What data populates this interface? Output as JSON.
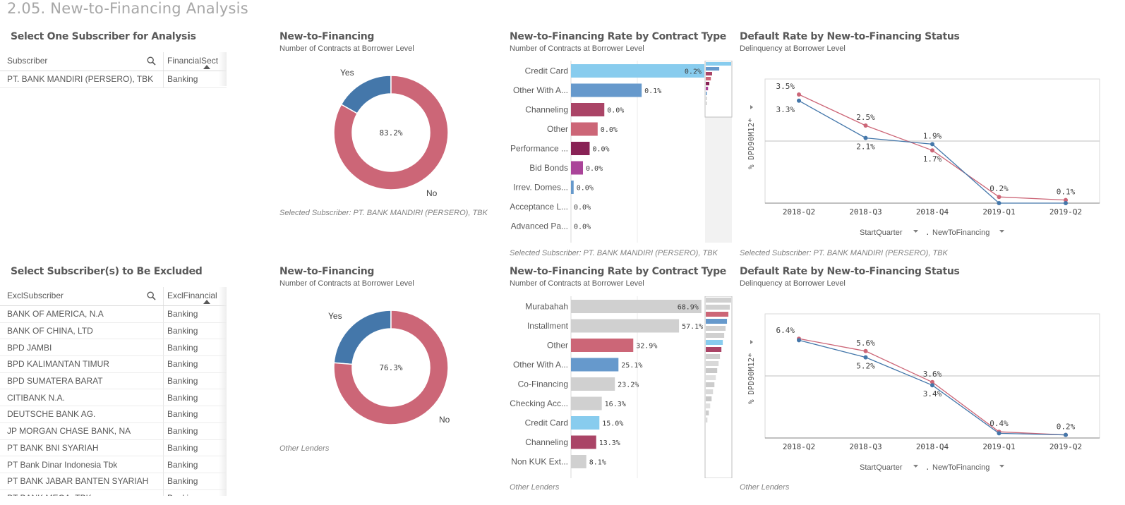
{
  "sheet": {
    "title": "2.05. New-to-Financing Analysis"
  },
  "panel_selector": {
    "title": "Select One Subscriber for Analysis",
    "col1": "Subscriber",
    "col2": "FinancialSect",
    "rows": [
      {
        "name": "PT. BANK MANDIRI (PERSERO), TBK",
        "sector": "Banking"
      }
    ]
  },
  "panel_exclude": {
    "title": "Select Subscriber(s) to Be Excluded",
    "col1": "ExclSubscriber",
    "col2": "ExclFinancial",
    "rows": [
      {
        "name": "BANK OF AMERICA, N.A",
        "sector": "Banking"
      },
      {
        "name": "BANK OF CHINA, LTD",
        "sector": "Banking"
      },
      {
        "name": "BPD JAMBI",
        "sector": "Banking"
      },
      {
        "name": "BPD KALIMANTAN TIMUR",
        "sector": "Banking"
      },
      {
        "name": "BPD SUMATERA BARAT",
        "sector": "Banking"
      },
      {
        "name": "CITIBANK N.A.",
        "sector": "Banking"
      },
      {
        "name": "DEUTSCHE BANK AG.",
        "sector": "Banking"
      },
      {
        "name": "JP MORGAN CHASE BANK, NA",
        "sector": "Banking"
      },
      {
        "name": "PT BANK BNI SYARIAH",
        "sector": "Banking"
      },
      {
        "name": "PT Bank Dinar Indonesia Tbk",
        "sector": "Banking"
      },
      {
        "name": "PT BANK JABAR BANTEN SYARIAH",
        "sector": "Banking"
      },
      {
        "name": "PT BANK MEGA, TBK",
        "sector": "Banking"
      }
    ]
  },
  "colors": {
    "yes": "#4477aa",
    "no": "#cc6677",
    "grey": "#d0d0d0",
    "light_blue": "#88ccee",
    "mid_blue": "#6699cc",
    "dark_rose": "#aa4466",
    "rose": "#cc6677",
    "plum": "#882255",
    "magenta": "#aa4499"
  },
  "chart_data": [
    {
      "type": "pie",
      "title": "New-to-Financing",
      "subtitle": "Number of Contracts at Borrower Level",
      "labels": [
        "Yes",
        "No"
      ],
      "values": [
        16.8,
        83.2
      ],
      "center_label": "83.2%",
      "footnote": "Selected Subscriber: PT. BANK MANDIRI (PERSERO), TBK"
    },
    {
      "type": "bar",
      "orientation": "horizontal",
      "title": "New-to-Financing Rate by Contract Type",
      "subtitle": "Number of Contracts at Borrower Level",
      "categories": [
        "Credit Card",
        "Other With A...",
        "Channeling",
        "Other",
        "Performance ...",
        "Bid Bonds",
        "Irrev. Domes...",
        "Acceptance L...",
        "Advanced Pa..."
      ],
      "values": [
        0.2,
        0.1,
        0.0,
        0.0,
        0.0,
        0.0,
        0.0,
        0.0,
        0.0
      ],
      "value_labels": [
        "0.2%",
        "0.1%",
        "0.0%",
        "0.0%",
        "0.0%",
        "0.0%",
        "0.0%",
        "0.0%",
        "0.0%"
      ],
      "bar_lengths": [
        1.0,
        0.53,
        0.25,
        0.2,
        0.14,
        0.09,
        0.02,
        0,
        0
      ],
      "bar_colors": [
        "#88ccee",
        "#6699cc",
        "#aa4466",
        "#cc6677",
        "#882255",
        "#aa4499",
        "#6699cc",
        "#cccccc",
        "#cccccc"
      ],
      "footnote": "Selected Subscriber: PT. BANK MANDIRI (PERSERO), TBK"
    },
    {
      "type": "line",
      "title": "Default Rate by New-to-Financing Status",
      "subtitle": "Delinquency at Borrower Level",
      "ylabel": "% DPD90M12*",
      "x": [
        "2018-Q2",
        "2018-Q3",
        "2018-Q4",
        "2019-Q1",
        "2019-Q2"
      ],
      "ylim": [
        0,
        4
      ],
      "series": [
        {
          "key": "no",
          "color": "#cc6677",
          "values": [
            3.5,
            2.5,
            1.7,
            0.2,
            0.1
          ],
          "labels": [
            "3.5%",
            "2.5%",
            "1.7%",
            "0.2%",
            "0.1%"
          ]
        },
        {
          "key": "yes",
          "color": "#4477aa",
          "values": [
            3.3,
            2.1,
            1.9,
            0.0,
            0.0
          ],
          "labels": [
            "3.3%",
            "2.1%",
            "1.9%",
            "",
            ""
          ]
        }
      ],
      "dimension_labels": [
        "StartQuarter",
        "NewToFinancing"
      ],
      "footnote": "Selected Subscriber: PT. BANK MANDIRI (PERSERO), TBK"
    },
    {
      "type": "pie",
      "title": "New-to-Financing",
      "subtitle": "Number of Contracts at Borrower Level",
      "labels": [
        "Yes",
        "No"
      ],
      "values": [
        23.7,
        76.3
      ],
      "center_label": "76.3%",
      "footnote": "Other Lenders"
    },
    {
      "type": "bar",
      "orientation": "horizontal",
      "title": "New-to-Financing Rate by Contract Type",
      "subtitle": "Number of Contracts at Borrower Level",
      "categories": [
        "Murabahah",
        "Installment",
        "Other",
        "Other With A...",
        "Co-Financing",
        "Checking Acc...",
        "Credit Card",
        "Channeling",
        "Non KUK Ext..."
      ],
      "values": [
        68.9,
        57.1,
        32.9,
        25.1,
        23.2,
        16.3,
        15.0,
        13.3,
        8.1
      ],
      "value_labels": [
        "68.9%",
        "57.1%",
        "32.9%",
        "25.1%",
        "23.2%",
        "16.3%",
        "15.0%",
        "13.3%",
        "8.1%"
      ],
      "bar_lengths": [
        0.978,
        0.81,
        0.467,
        0.356,
        0.329,
        0.231,
        0.213,
        0.189,
        0.115
      ],
      "bar_colors": [
        "#d0d0d0",
        "#d0d0d0",
        "#cc6677",
        "#6699cc",
        "#d0d0d0",
        "#d0d0d0",
        "#88ccee",
        "#aa4466",
        "#d0d0d0"
      ],
      "footnote": "Other Lenders"
    },
    {
      "type": "line",
      "title": "Default Rate by New-to-Financing Status",
      "subtitle": "Delinquency at Borrower Level",
      "ylabel": "% DPD90M12*",
      "x": [
        "2018-Q2",
        "2018-Q3",
        "2018-Q4",
        "2019-Q1",
        "2019-Q2"
      ],
      "ylim": [
        0,
        8
      ],
      "series": [
        {
          "key": "no",
          "color": "#cc6677",
          "values": [
            6.4,
            5.6,
            3.6,
            0.4,
            0.2
          ],
          "labels": [
            "6.4%",
            "5.6%",
            "3.6%",
            "0.4%",
            "0.2%"
          ]
        },
        {
          "key": "yes",
          "color": "#4477aa",
          "values": [
            6.3,
            5.2,
            3.4,
            0.3,
            0.2
          ],
          "labels": [
            "",
            "5.2%",
            "3.4%",
            "",
            ""
          ]
        }
      ],
      "dimension_labels": [
        "StartQuarter",
        "NewToFinancing"
      ],
      "footnote": "Other Lenders"
    }
  ]
}
